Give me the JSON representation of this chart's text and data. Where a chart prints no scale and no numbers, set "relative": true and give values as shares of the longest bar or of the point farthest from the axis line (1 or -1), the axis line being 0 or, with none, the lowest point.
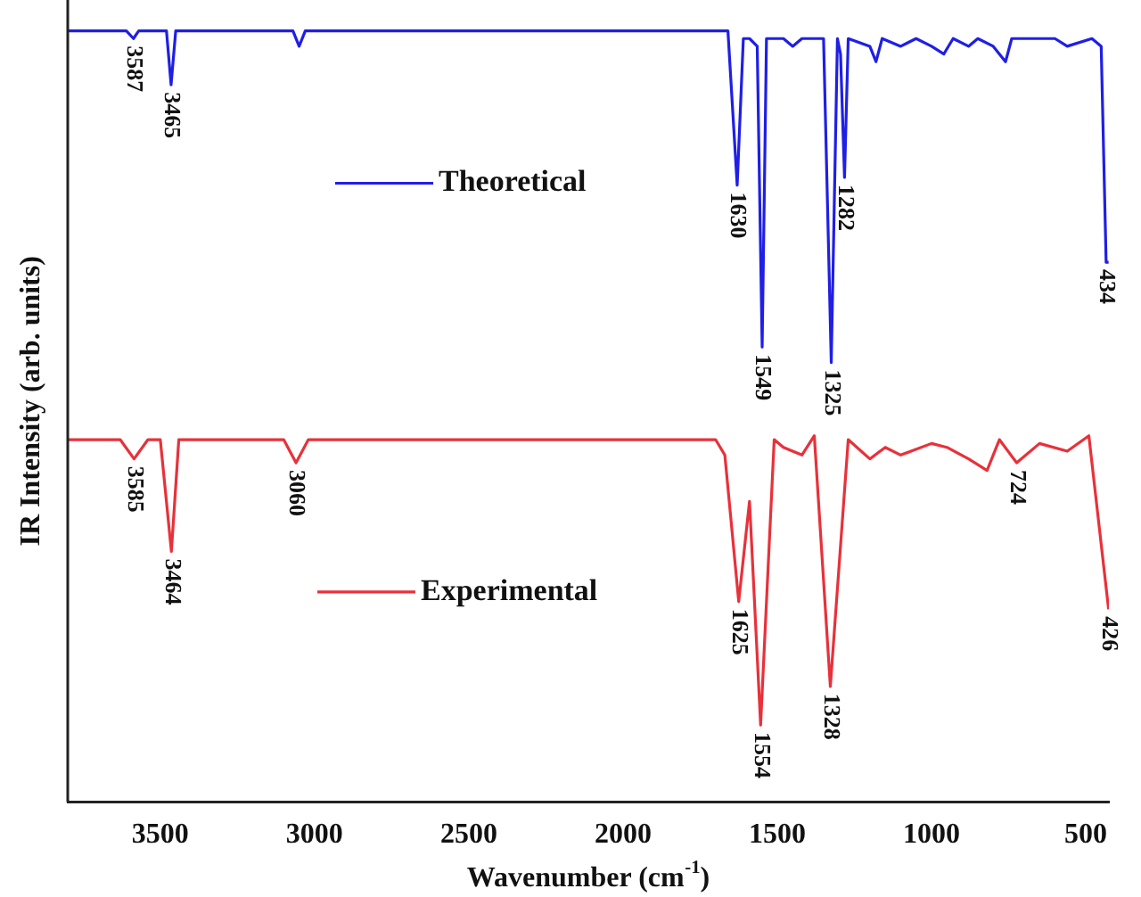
{
  "chart_data": {
    "type": "line",
    "relative": true,
    "xlabel": "Wavenumber (cm$^{-1}$)",
    "ylabel": "IR Intensity (arb. units)",
    "xlim": [
      3800,
      425
    ],
    "xticks": [
      3500,
      3000,
      2500,
      2000,
      1500,
      1000,
      500
    ],
    "grid": false,
    "legend": "left",
    "marker": "none",
    "line_style": "solid",
    "series": [
      {
        "name": "Theoretical",
        "color": "#1f1fe6",
        "x": [
          3800,
          3610,
          3587,
          3570,
          3480,
          3465,
          3450,
          3070,
          3050,
          3030,
          1660,
          1630,
          1610,
          1590,
          1565,
          1549,
          1535,
          1480,
          1450,
          1420,
          1350,
          1325,
          1305,
          1295,
          1282,
          1270,
          1200,
          1180,
          1160,
          1100,
          1050,
          1000,
          960,
          930,
          880,
          850,
          800,
          760,
          740,
          600,
          560,
          480,
          450,
          434,
          426
        ],
        "values": [
          1,
          1,
          0.99,
          1,
          1,
          0.93,
          1,
          1,
          0.98,
          1,
          1,
          0.8,
          0.99,
          0.99,
          0.98,
          0.59,
          0.99,
          0.99,
          0.98,
          0.99,
          0.99,
          0.57,
          0.99,
          0.97,
          0.81,
          0.99,
          0.98,
          0.96,
          0.99,
          0.98,
          0.99,
          0.98,
          0.97,
          0.99,
          0.98,
          0.99,
          0.98,
          0.96,
          0.99,
          0.99,
          0.98,
          0.99,
          0.98,
          0.7,
          0.7
        ]
      },
      {
        "name": "Experimental",
        "color": "#e8313a",
        "x": [
          3800,
          3630,
          3585,
          3540,
          3500,
          3464,
          3440,
          3100,
          3060,
          3020,
          1700,
          1670,
          1625,
          1590,
          1554,
          1510,
          1480,
          1420,
          1380,
          1328,
          1270,
          1200,
          1150,
          1100,
          1000,
          950,
          880,
          820,
          780,
          724,
          650,
          560,
          490,
          426
        ],
        "values": [
          0.47,
          0.47,
          0.445,
          0.47,
          0.47,
          0.325,
          0.47,
          0.47,
          0.44,
          0.47,
          0.47,
          0.45,
          0.26,
          0.39,
          0.1,
          0.47,
          0.46,
          0.45,
          0.475,
          0.15,
          0.47,
          0.445,
          0.46,
          0.45,
          0.465,
          0.46,
          0.445,
          0.43,
          0.47,
          0.44,
          0.465,
          0.455,
          0.475,
          0.25
        ]
      }
    ],
    "annotations": [
      {
        "text": "3587",
        "x": 3587,
        "y": 0.99
      },
      {
        "text": "3465",
        "x": 3465,
        "y": 0.93
      },
      {
        "text": "1630",
        "x": 1630,
        "y": 0.8
      },
      {
        "text": "1549",
        "x": 1549,
        "y": 0.59
      },
      {
        "text": "1325",
        "x": 1325,
        "y": 0.57
      },
      {
        "text": "1282",
        "x": 1282,
        "y": 0.81
      },
      {
        "text": "434",
        "x": 434,
        "y": 0.7
      },
      {
        "text": "3585",
        "x": 3585,
        "y": 0.445
      },
      {
        "text": "3464",
        "x": 3464,
        "y": 0.325
      },
      {
        "text": "3060",
        "x": 3060,
        "y": 0.44
      },
      {
        "text": "1625",
        "x": 1625,
        "y": 0.26
      },
      {
        "text": "1554",
        "x": 1554,
        "y": 0.1
      },
      {
        "text": "1328",
        "x": 1328,
        "y": 0.15
      },
      {
        "text": "724",
        "x": 724,
        "y": 0.44
      },
      {
        "text": "426",
        "x": 426,
        "y": 0.25
      }
    ]
  }
}
